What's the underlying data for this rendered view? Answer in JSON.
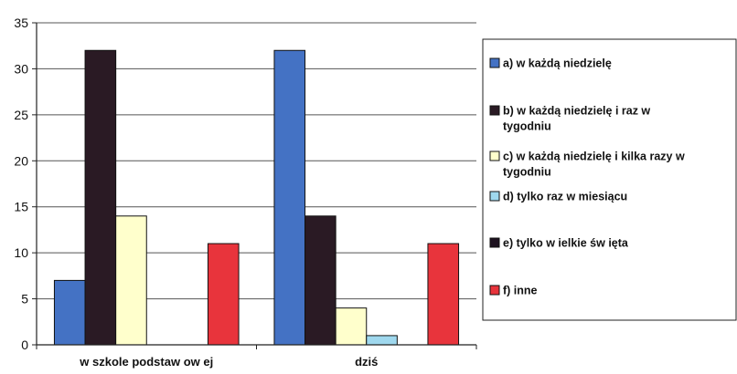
{
  "chart_data": {
    "type": "bar",
    "title": "",
    "xlabel": "",
    "ylabel": "",
    "categories": [
      "w szkole podstaw ow ej",
      "dziś"
    ],
    "ylim": [
      0,
      35
    ],
    "yticks": [
      0,
      5,
      10,
      15,
      20,
      25,
      30,
      35
    ],
    "legend_position": "right",
    "series": [
      {
        "name": "a) w każdą niedzielę",
        "legend_lines": [
          "a) w każdą niedzielę"
        ],
        "color": "#4472C4",
        "values": [
          7,
          32
        ]
      },
      {
        "name": "b) w każdą niedzielę i raz w tygodniu",
        "legend_lines": [
          "b) w każdą niedzielę i raz w",
          "tygodniu"
        ],
        "color": "#2A1A24",
        "values": [
          32,
          14
        ]
      },
      {
        "name": "c) w każdą niedzielę i kilka razy w tygodniu",
        "legend_lines": [
          "c) w każdą niedzielę i kilka razy w",
          "tygodniu"
        ],
        "color": "#FFFFCC",
        "values": [
          14,
          4
        ]
      },
      {
        "name": "d) tylko raz w miesiącu",
        "legend_lines": [
          "d) tylko raz w miesiącu"
        ],
        "color": "#9FD8EE",
        "values": [
          0,
          1
        ]
      },
      {
        "name": "e) tylko w ielkie św ięta",
        "legend_lines": [
          "e) tylko w ielkie św ięta"
        ],
        "color": "#1E1220",
        "values": [
          0,
          0
        ]
      },
      {
        "name": "f) inne",
        "legend_lines": [
          "f) inne"
        ],
        "color": "#E8343C",
        "values": [
          11,
          11
        ]
      }
    ]
  }
}
